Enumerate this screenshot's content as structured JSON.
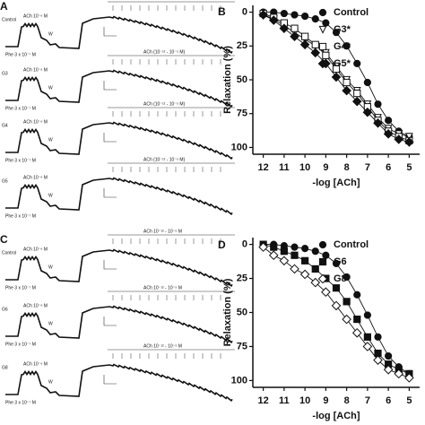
{
  "traces": {
    "panels": [
      {
        "letter": "A",
        "rows": [
          {
            "group": "Control",
            "ach_single": "ACh 10⁻⁶ M",
            "wash": "W",
            "ach_range": "ACh 10⁻¹² - 10⁻⁵ M",
            "phe": "Phe 3 x 10⁻⁷ M"
          },
          {
            "group": "G3",
            "ach_single": "ACh 10⁻⁶ M",
            "wash": "W",
            "ach_range": "ACh (10⁻¹² - 10⁻⁵ M)",
            "phe": "Phe 3 x 10⁻⁷ M"
          },
          {
            "group": "G4",
            "ach_single": "ACh 10⁻⁶ M",
            "wash": "W",
            "ach_range": "ACh (10⁻¹² - 10⁻⁵ M)",
            "phe": "Phe 3 x 10⁻⁷ M"
          },
          {
            "group": "G5",
            "ach_single": "ACh 10⁻⁶ M",
            "wash": "W",
            "ach_range": "ACh (10⁻¹² - 10⁻⁵ M)",
            "phe": "Phe 3 x 10⁻⁷ M"
          }
        ]
      },
      {
        "letter": "C",
        "rows": [
          {
            "group": "Control",
            "ach_single": "ACh 10⁻⁶ M",
            "wash": "W",
            "ach_range": "ACh 10⁻¹² - 10⁻⁵ M",
            "phe": "Phe 3 x 10⁻⁷ M"
          },
          {
            "group": "G6",
            "ach_single": "ACh 10⁻⁶ M",
            "wash": "W",
            "ach_range": "ACh 10⁻¹² - 10⁻⁵ M",
            "phe": "Phe 3 x 10⁻⁷ M"
          },
          {
            "group": "G8",
            "ach_single": "ACh 10⁻⁶ M",
            "wash": "W",
            "ach_range": "ACh 10⁻¹² - 10⁻⁵ M",
            "phe": "Phe 3 x 10⁻⁷ M"
          }
        ]
      }
    ]
  },
  "chart_data": [
    {
      "type": "scatter",
      "letter": "B",
      "xlabel": "-log [ACh]",
      "ylabel": "Relaxation (%)",
      "x": [
        12,
        11.5,
        11,
        10.5,
        10,
        9.5,
        9,
        8.5,
        8,
        7.5,
        7,
        6.5,
        6,
        5.5,
        5
      ],
      "xlim": [
        12.5,
        4.5
      ],
      "xticks": [
        12,
        11,
        10,
        9,
        8,
        7,
        6,
        5
      ],
      "ylim": [
        -5,
        105
      ],
      "yticks": [
        0,
        25,
        50,
        75,
        100
      ],
      "y_inverted": true,
      "series": [
        {
          "name": "Control",
          "marker": "circle",
          "filled": true,
          "color": "#111111",
          "values": [
            0,
            0,
            1,
            2,
            3,
            5,
            8,
            15,
            25,
            38,
            52,
            68,
            80,
            88,
            92
          ]
        },
        {
          "name": "G3*",
          "marker": "triangle-down",
          "filled": false,
          "color": "#111111",
          "values": [
            2,
            5,
            10,
            15,
            20,
            25,
            30,
            40,
            50,
            58,
            68,
            78,
            86,
            90,
            92
          ]
        },
        {
          "name": "G4*",
          "marker": "square",
          "filled": false,
          "color": "#111111",
          "values": [
            1,
            4,
            8,
            12,
            18,
            24,
            32,
            42,
            52,
            60,
            70,
            80,
            88,
            92,
            95
          ]
        },
        {
          "name": "G5*",
          "marker": "diamond",
          "filled": true,
          "color": "#111111",
          "values": [
            2,
            6,
            12,
            18,
            24,
            30,
            38,
            48,
            58,
            66,
            74,
            82,
            90,
            94,
            96
          ]
        }
      ]
    },
    {
      "type": "scatter",
      "letter": "D",
      "xlabel": "-log [ACh]",
      "ylabel": "Relaxation (%)",
      "x": [
        12,
        11.5,
        11,
        10.5,
        10,
        9.5,
        9,
        8.5,
        8,
        7.5,
        7,
        6.5,
        6,
        5.5,
        5
      ],
      "xlim": [
        12.5,
        4.5
      ],
      "xticks": [
        12,
        11,
        10,
        9,
        8,
        7,
        6,
        5
      ],
      "ylim": [
        -5,
        105
      ],
      "yticks": [
        0,
        25,
        50,
        75,
        100
      ],
      "y_inverted": true,
      "series": [
        {
          "name": "Control",
          "marker": "circle",
          "filled": true,
          "color": "#111111",
          "values": [
            0,
            0,
            1,
            2,
            3,
            5,
            8,
            14,
            24,
            37,
            52,
            68,
            82,
            90,
            95
          ]
        },
        {
          "name": "G6",
          "marker": "square",
          "filled": true,
          "color": "#111111",
          "values": [
            0,
            2,
            5,
            8,
            12,
            18,
            25,
            32,
            42,
            55,
            68,
            80,
            88,
            92,
            95
          ]
        },
        {
          "name": "G8",
          "marker": "diamond",
          "filled": false,
          "color": "#111111",
          "values": [
            2,
            8,
            12,
            18,
            22,
            28,
            35,
            45,
            55,
            65,
            75,
            85,
            92,
            95,
            98
          ]
        }
      ]
    }
  ]
}
